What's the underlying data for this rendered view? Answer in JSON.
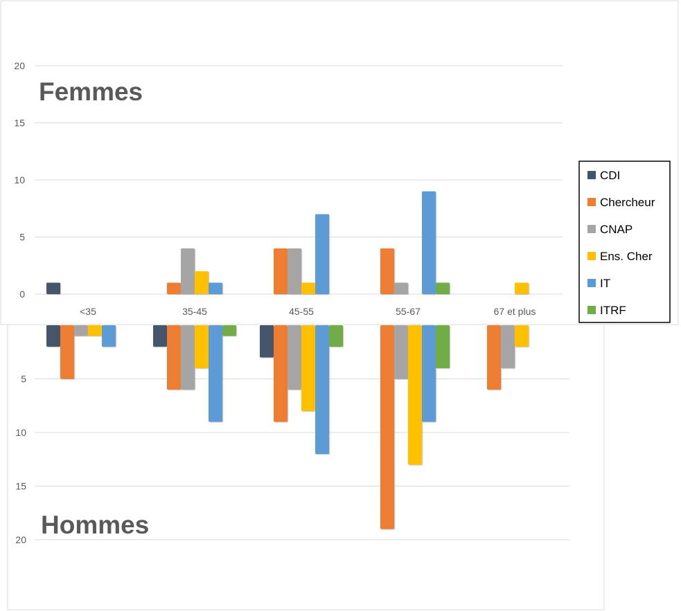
{
  "chart_data": [
    {
      "type": "bar",
      "title": "Hommes",
      "categories": [
        "<35",
        "35-45",
        "45-55",
        "55-67",
        "67 et plus"
      ],
      "y_ticks": [
        "5",
        "10",
        "15",
        "20"
      ],
      "ylim": [
        0,
        20
      ],
      "y_direction": "downward",
      "grid": true,
      "series": [
        {
          "name": "CDI",
          "color": "#44546a",
          "values": [
            2,
            2,
            3,
            0,
            0
          ]
        },
        {
          "name": "Chercheur",
          "color": "#ed7d31",
          "values": [
            5,
            6,
            9,
            19,
            6
          ]
        },
        {
          "name": "CNAP",
          "color": "#a5a5a5",
          "values": [
            1,
            6,
            6,
            5,
            4
          ]
        },
        {
          "name": "Ens. Cher",
          "color": "#ffc000",
          "values": [
            1,
            4,
            8,
            13,
            2
          ]
        },
        {
          "name": "IT",
          "color": "#5b9bd5",
          "values": [
            2,
            9,
            12,
            9,
            0
          ]
        },
        {
          "name": "ITRF",
          "color": "#70ad47",
          "values": [
            0,
            1,
            2,
            4,
            0
          ]
        }
      ]
    },
    {
      "type": "bar",
      "title": "Femmes",
      "categories": [
        "<35",
        "35-45",
        "45-55",
        "55-67",
        "67 et plus"
      ],
      "y_ticks": [
        "0",
        "5",
        "10",
        "15",
        "20"
      ],
      "ylim": [
        0,
        20
      ],
      "grid": true,
      "legend_position": "right",
      "series": [
        {
          "name": "CDI",
          "color": "#44546a",
          "values": [
            1,
            0,
            0,
            0,
            0
          ]
        },
        {
          "name": "Chercheur",
          "color": "#ed7d31",
          "values": [
            0,
            1,
            4,
            4,
            0
          ]
        },
        {
          "name": "CNAP",
          "color": "#a5a5a5",
          "values": [
            0,
            4,
            4,
            1,
            0
          ]
        },
        {
          "name": "Ens. Cher",
          "color": "#ffc000",
          "values": [
            0,
            2,
            1,
            0,
            1
          ]
        },
        {
          "name": "IT",
          "color": "#5b9bd5",
          "values": [
            0,
            1,
            7,
            9,
            0
          ]
        },
        {
          "name": "ITRF",
          "color": "#70ad47",
          "values": [
            0,
            0,
            0,
            1,
            0
          ]
        }
      ]
    }
  ]
}
